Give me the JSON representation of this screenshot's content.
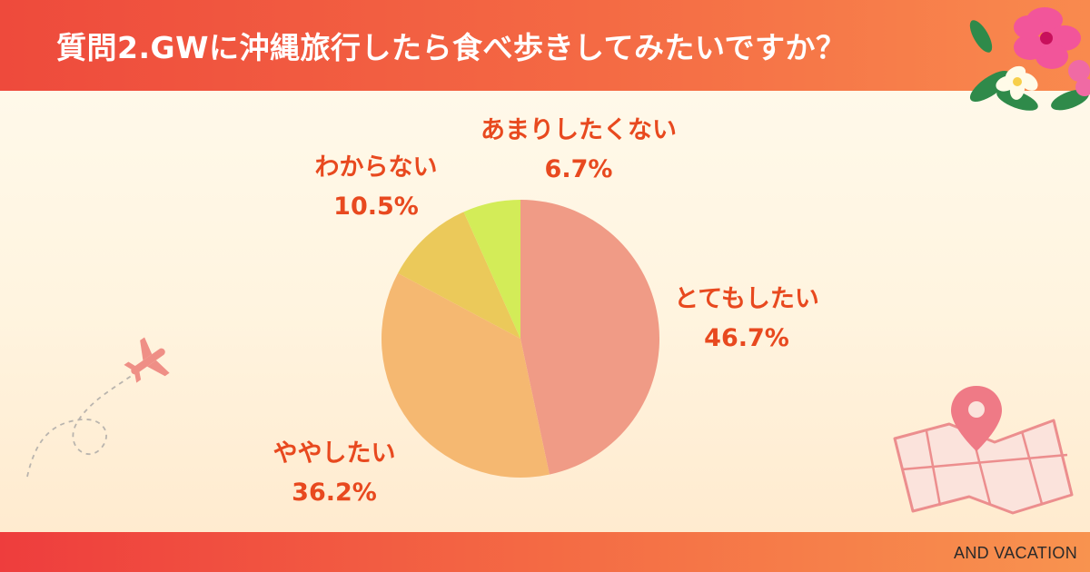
{
  "header": {
    "title": "質問2.GWに沖縄旅行したら食べ歩きしてみたいですか？"
  },
  "footer": {
    "brand": "AND VACATION"
  },
  "chart_data": {
    "type": "pie",
    "title": "",
    "start": "top",
    "direction": "clockwise",
    "slices": [
      {
        "label": "とてもしたい",
        "value": 46.7,
        "display": "46.7%",
        "color": "#f09b86"
      },
      {
        "label": "ややしたい",
        "value": 36.2,
        "display": "36.2%",
        "color": "#f5b871"
      },
      {
        "label": "わからない",
        "value": 10.5,
        "display": "10.5%",
        "color": "#ebc95a"
      },
      {
        "label": "あまりしたくない",
        "value": 6.7,
        "display": "6.7%",
        "color": "#d3ec58"
      }
    ]
  },
  "decorations": {
    "top_right": "hibiscus-flower-icon",
    "left": "airplane-icon",
    "bottom_right": "map-pin-icon"
  }
}
